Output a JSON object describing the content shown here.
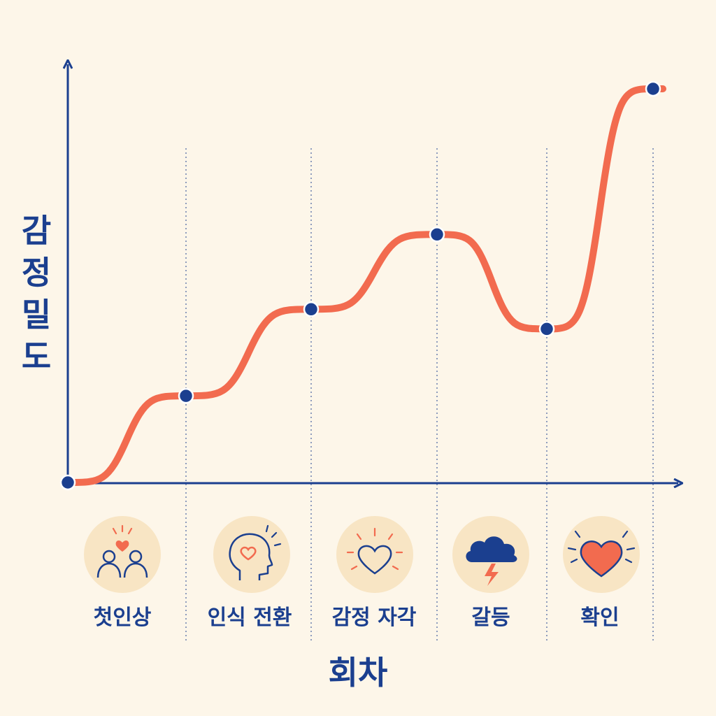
{
  "chart_data": {
    "type": "line",
    "title": "",
    "xlabel": "회차",
    "ylabel": "감정 밀도",
    "x": [
      0,
      1,
      2,
      3,
      4,
      5
    ],
    "values": [
      0,
      22,
      44,
      63,
      39,
      100
    ],
    "categories": [
      "첫인상",
      "인식 전환",
      "감정 자각",
      "갈등",
      "확인"
    ],
    "icons": [
      "two-people-heart-icon",
      "head-heart-icon",
      "glowing-heart-icon",
      "storm-cloud-lightning-icon",
      "shining-heart-icon"
    ],
    "grid": "vertical-dotted",
    "colors": {
      "line": "#f26b4f",
      "axis": "#1b3f8f",
      "point": "#1b3f8f",
      "icon_bg": "#f8e5c4",
      "background": "#fdf6e9"
    }
  }
}
